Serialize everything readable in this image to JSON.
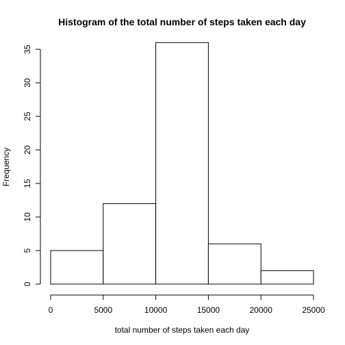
{
  "chart_data": {
    "type": "bar",
    "title": "Histogram of the total number of steps taken each day",
    "xlabel": "total number of steps taken each day",
    "ylabel": "Frequency",
    "bins": [
      {
        "start": 0,
        "end": 5000,
        "count": 5
      },
      {
        "start": 5000,
        "end": 10000,
        "count": 12
      },
      {
        "start": 10000,
        "end": 15000,
        "count": 36
      },
      {
        "start": 15000,
        "end": 20000,
        "count": 6
      },
      {
        "start": 20000,
        "end": 25000,
        "count": 2
      }
    ],
    "xlim": [
      0,
      25000
    ],
    "ylim": [
      0,
      35
    ],
    "xticks": [
      0,
      5000,
      10000,
      15000,
      20000,
      25000
    ],
    "yticks": [
      0,
      5,
      10,
      15,
      20,
      25,
      30,
      35
    ],
    "grid": false,
    "legend": "none"
  }
}
